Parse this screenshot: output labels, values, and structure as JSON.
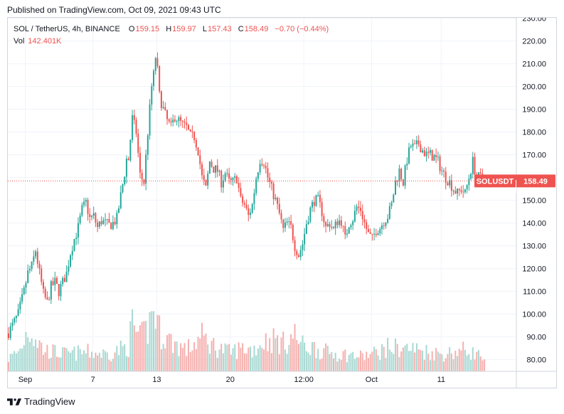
{
  "header": {
    "published": "Published on TradingView.com, Oct 09, 2021 09:43 UTC"
  },
  "legend": {
    "symbol": "SOL / TetherUS, 4h, BINANCE",
    "o_label": "O",
    "o_value": "159.15",
    "h_label": "H",
    "h_value": "159.97",
    "l_label": "L",
    "l_value": "157.43",
    "c_label": "C",
    "c_value": "158.49",
    "change": "−0.70 (−0.44%)",
    "vol_label": "Vol",
    "vol_value": "142.401K"
  },
  "footer": {
    "brand": "TradingView"
  },
  "colors": {
    "up": "#26a69a",
    "down": "#ef5350",
    "vol_up": "#a8d8d2",
    "vol_down": "#f5b0ae",
    "price_line": "#ef5350",
    "grid": "#f0f3fa",
    "axis_text": "#131722"
  },
  "chart_data": {
    "type": "candlestick",
    "symbol_label": "SOLUSDT",
    "last_price": "158.49",
    "last_value": 158.49,
    "ylim": [
      78,
      232
    ],
    "y_ticks": [
      "230.00",
      "220.00",
      "210.00",
      "200.00",
      "190.00",
      "180.00",
      "170.00",
      "160.00",
      "150.00",
      "140.00",
      "130.00",
      "120.00",
      "110.00",
      "100.00",
      "90.00",
      "80.00"
    ],
    "x_ticks": [
      "Sep",
      "7",
      "13",
      "20",
      "12:00",
      "Oct",
      "11"
    ],
    "x_tick_bars": [
      9,
      44,
      77,
      115,
      153,
      188,
      224
    ],
    "grid": true,
    "bars": 242,
    "close_path": [
      [
        0,
        92
      ],
      [
        2,
        95
      ],
      [
        5,
        100
      ],
      [
        8,
        110
      ],
      [
        10,
        118
      ],
      [
        12,
        121
      ],
      [
        14,
        128
      ],
      [
        16,
        118
      ],
      [
        18,
        109
      ],
      [
        20,
        105
      ],
      [
        22,
        112
      ],
      [
        24,
        114
      ],
      [
        26,
        110
      ],
      [
        28,
        114
      ],
      [
        30,
        118
      ],
      [
        32,
        127
      ],
      [
        34,
        133
      ],
      [
        36,
        138
      ],
      [
        38,
        146
      ],
      [
        40,
        149
      ],
      [
        42,
        142
      ],
      [
        44,
        143
      ],
      [
        46,
        138
      ],
      [
        48,
        141
      ],
      [
        50,
        140
      ],
      [
        52,
        139
      ],
      [
        54,
        140
      ],
      [
        56,
        142
      ],
      [
        58,
        152
      ],
      [
        60,
        162
      ],
      [
        61,
        168
      ],
      [
        62,
        168
      ],
      [
        64,
        186
      ],
      [
        66,
        180
      ],
      [
        68,
        161
      ],
      [
        70,
        158
      ],
      [
        72,
        180
      ],
      [
        74,
        200
      ],
      [
        75,
        205
      ],
      [
        76,
        213
      ],
      [
        77,
        207
      ],
      [
        78,
        196
      ],
      [
        80,
        190
      ],
      [
        82,
        185
      ],
      [
        84,
        182
      ],
      [
        86,
        187
      ],
      [
        88,
        185
      ],
      [
        90,
        183
      ],
      [
        92,
        182
      ],
      [
        94,
        178
      ],
      [
        96,
        178
      ],
      [
        98,
        172
      ],
      [
        100,
        160
      ],
      [
        102,
        155
      ],
      [
        104,
        167
      ],
      [
        106,
        164
      ],
      [
        108,
        163
      ],
      [
        110,
        158
      ],
      [
        112,
        162
      ],
      [
        114,
        158
      ],
      [
        116,
        158
      ],
      [
        118,
        160
      ],
      [
        120,
        150
      ],
      [
        122,
        148
      ],
      [
        124,
        143
      ],
      [
        126,
        148
      ],
      [
        128,
        160
      ],
      [
        130,
        168
      ],
      [
        132,
        167
      ],
      [
        134,
        160
      ],
      [
        136,
        155
      ],
      [
        138,
        150
      ],
      [
        140,
        144
      ],
      [
        142,
        137
      ],
      [
        144,
        140
      ],
      [
        146,
        138
      ],
      [
        148,
        130
      ],
      [
        150,
        126
      ],
      [
        152,
        131
      ],
      [
        154,
        140
      ],
      [
        156,
        146
      ],
      [
        158,
        150
      ],
      [
        160,
        150
      ],
      [
        162,
        145
      ],
      [
        164,
        138
      ],
      [
        166,
        140
      ],
      [
        168,
        137
      ],
      [
        170,
        141
      ],
      [
        172,
        141
      ],
      [
        174,
        133
      ],
      [
        176,
        140
      ],
      [
        178,
        142
      ],
      [
        180,
        147
      ],
      [
        182,
        146
      ],
      [
        184,
        140
      ],
      [
        186,
        135
      ],
      [
        188,
        133
      ],
      [
        190,
        137
      ],
      [
        192,
        138
      ],
      [
        194,
        141
      ],
      [
        196,
        143
      ],
      [
        198,
        148
      ],
      [
        200,
        158
      ],
      [
        202,
        163
      ],
      [
        204,
        158
      ],
      [
        206,
        168
      ],
      [
        208,
        174
      ],
      [
        210,
        173
      ],
      [
        212,
        175
      ],
      [
        214,
        172
      ],
      [
        216,
        170
      ],
      [
        218,
        170
      ],
      [
        220,
        169
      ],
      [
        222,
        167
      ],
      [
        224,
        163
      ],
      [
        226,
        160
      ],
      [
        228,
        158
      ],
      [
        230,
        155
      ],
      [
        232,
        153
      ],
      [
        234,
        155
      ],
      [
        236,
        153
      ],
      [
        238,
        160
      ],
      [
        240,
        167
      ],
      [
        242,
        160
      ],
      [
        244,
        160
      ],
      [
        246,
        158.49
      ]
    ],
    "volume_path": [
      [
        0,
        6
      ],
      [
        6,
        10
      ],
      [
        10,
        20
      ],
      [
        14,
        16
      ],
      [
        18,
        10
      ],
      [
        24,
        9
      ],
      [
        30,
        8
      ],
      [
        40,
        9
      ],
      [
        52,
        8
      ],
      [
        62,
        12
      ],
      [
        64,
        22
      ],
      [
        68,
        15
      ],
      [
        72,
        20
      ],
      [
        75,
        30
      ],
      [
        78,
        19
      ],
      [
        84,
        14
      ],
      [
        92,
        10
      ],
      [
        100,
        16
      ],
      [
        106,
        12
      ],
      [
        114,
        9
      ],
      [
        122,
        11
      ],
      [
        126,
        10
      ],
      [
        132,
        14
      ],
      [
        138,
        15
      ],
      [
        142,
        13
      ],
      [
        148,
        17
      ],
      [
        152,
        12
      ],
      [
        158,
        11
      ],
      [
        164,
        9
      ],
      [
        172,
        8
      ],
      [
        182,
        7
      ],
      [
        188,
        8
      ],
      [
        196,
        11
      ],
      [
        204,
        11
      ],
      [
        212,
        10
      ],
      [
        224,
        8
      ],
      [
        236,
        10
      ],
      [
        242,
        8
      ],
      [
        246,
        6
      ]
    ]
  }
}
